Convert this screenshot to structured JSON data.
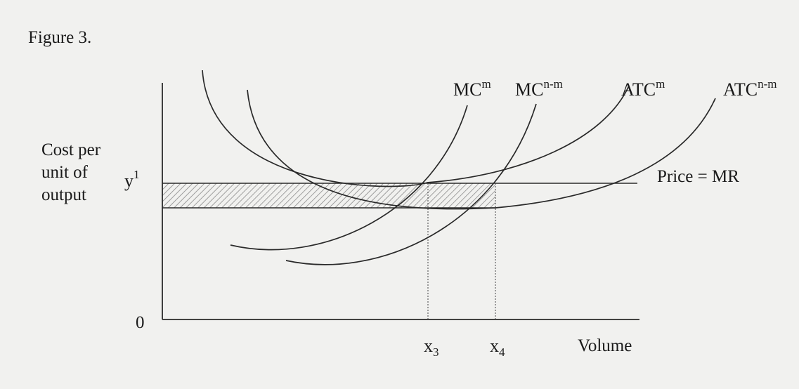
{
  "figure": {
    "title": "Figure 3."
  },
  "axes": {
    "y_label_lines": [
      "Cost per",
      "unit of",
      "output"
    ],
    "y_tick_y1_base": "y",
    "y_tick_y1_sup": "1",
    "origin": "0",
    "x_label": "Volume",
    "x3_base": "x",
    "x3_sub": "3",
    "x4_base": "x",
    "x4_sub": "4"
  },
  "curves": {
    "mc_m": {
      "base": "MC",
      "sup": "m"
    },
    "mc_nm": {
      "base": "MC",
      "sup": "n-m"
    },
    "atc_m": {
      "base": "ATC",
      "sup": "m"
    },
    "atc_nm": {
      "base": "ATC",
      "sup": "n-m"
    }
  },
  "price_line": {
    "label": "Price = MR"
  },
  "colors": {
    "ink": "#2a2a2a",
    "background": "#f1f1ef",
    "hatch": "#8a8a8a"
  }
}
